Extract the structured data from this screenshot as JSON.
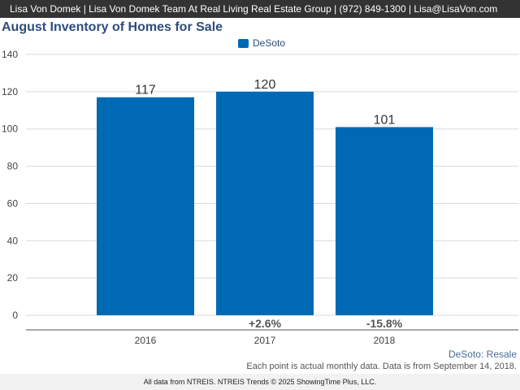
{
  "header": {
    "contact": "Lisa Von Domek | Lisa Von Domek Team At Real Living Real Estate Group | (972) 849-1300 | Lisa@LisaVon.com"
  },
  "colors": {
    "bar": "#0069b4",
    "title": "#2e4d7b",
    "grid": "#d9d9d9"
  },
  "chart_data": {
    "type": "bar",
    "title": "August Inventory of Homes for Sale",
    "xlabel": "",
    "ylabel": "",
    "ylim": [
      0,
      140
    ],
    "yticks": [
      0,
      20,
      40,
      60,
      80,
      100,
      120,
      140
    ],
    "categories": [
      "2016",
      "2017",
      "2018"
    ],
    "series": [
      {
        "name": "DeSoto",
        "values": [
          117,
          120,
          101
        ]
      }
    ],
    "data_labels": [
      "117",
      "120",
      "101"
    ],
    "change_labels": [
      "",
      "+2.6%",
      "-15.8%"
    ],
    "legend_position": "top-center",
    "grid": true
  },
  "attribution": "DeSoto: Resale",
  "footnote": "Each point is actual monthly data. Data is from September 14, 2018.",
  "footer": "All data from NTREIS. NTREIS Trends © 2025 ShowingTime Plus, LLC."
}
